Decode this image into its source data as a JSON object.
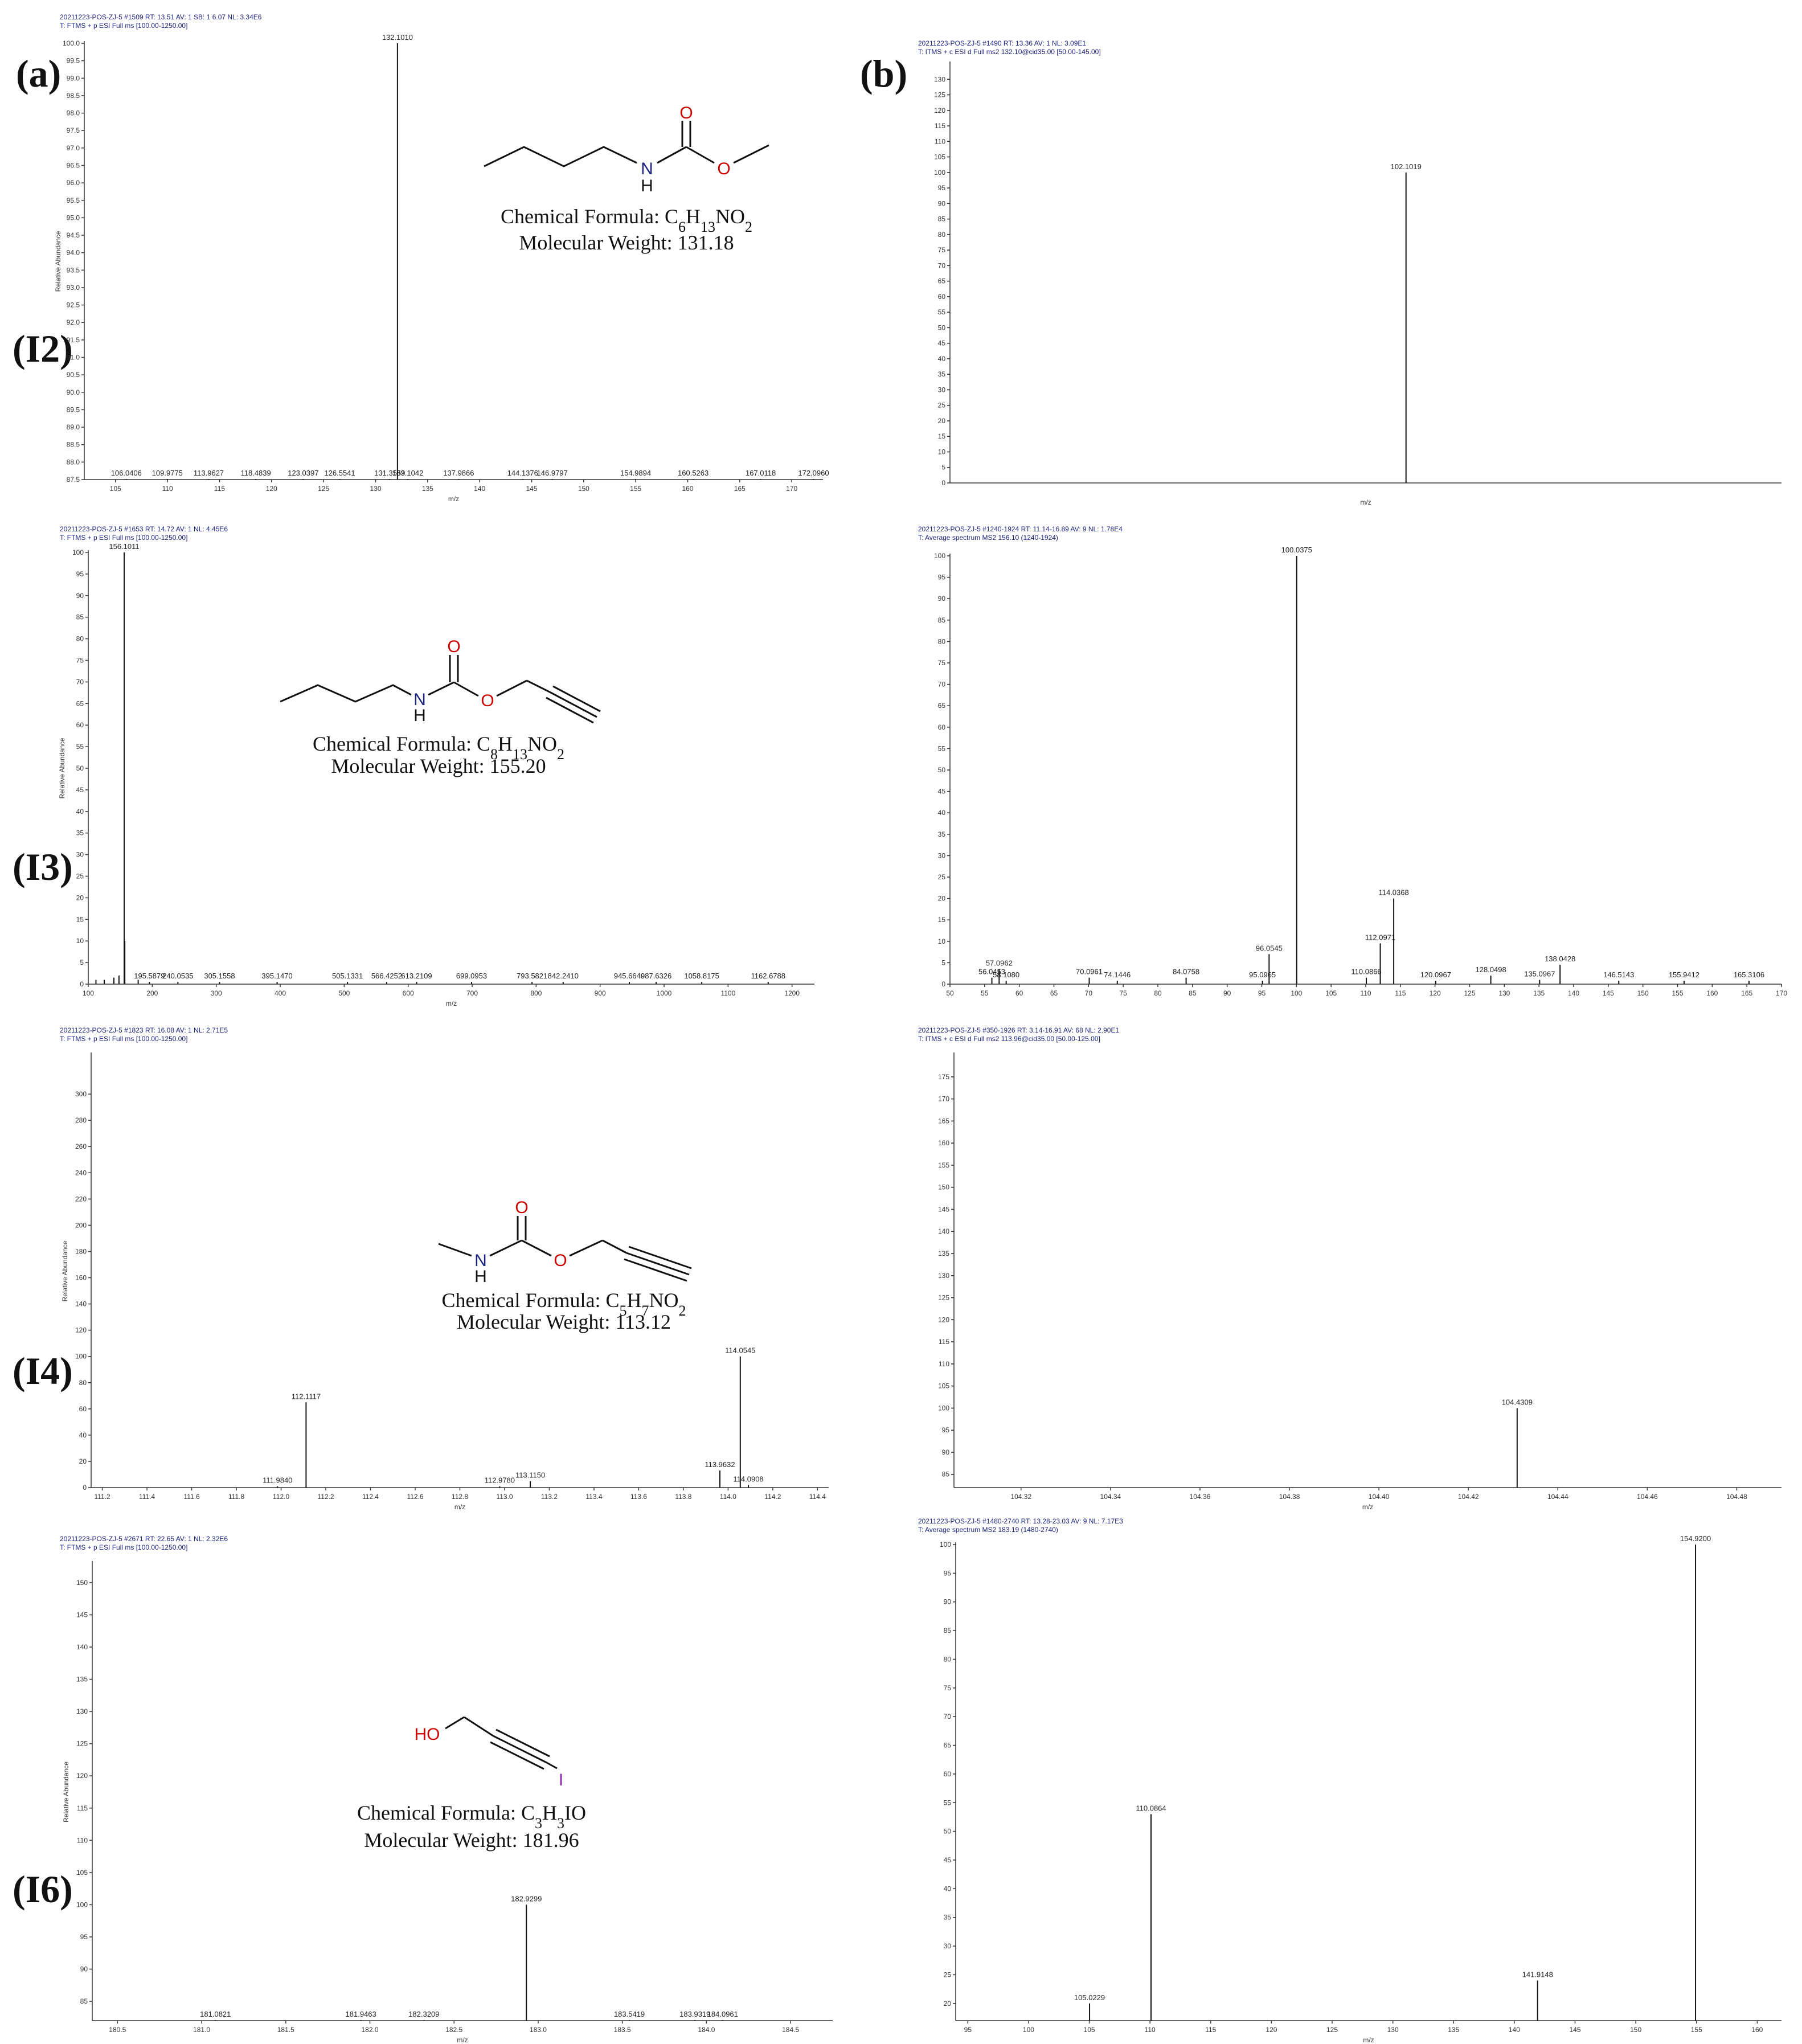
{
  "panel_labels": {
    "a": "(a)",
    "b": "(b)",
    "I2": "(I2)",
    "I3": "(I3)",
    "I4": "(I4)",
    "I6": "(I6)"
  },
  "colors": {
    "header": "#1a237e",
    "oxygen": "#cc0000",
    "nitrogen": "#1a237e",
    "iodine": "#8e24aa"
  },
  "molecules": {
    "I2": {
      "formula_prefix": "Chemical Formula: ",
      "formula": [
        [
          "C",
          ""
        ],
        [
          "6",
          "sub"
        ],
        [
          "H",
          ""
        ],
        [
          "13",
          "sub"
        ],
        [
          "NO",
          ""
        ],
        [
          "2",
          "sub"
        ]
      ],
      "weight": "Molecular Weight: 131.18",
      "atoms": {
        "O1": "O",
        "O2": "O",
        "N": "N",
        "H": "H"
      }
    },
    "I3": {
      "formula_prefix": "Chemical Formula: ",
      "formula": [
        [
          "C",
          ""
        ],
        [
          "8",
          "sub"
        ],
        [
          "H",
          ""
        ],
        [
          "13",
          "sub"
        ],
        [
          "NO",
          ""
        ],
        [
          "2",
          "sub"
        ]
      ],
      "weight": "Molecular Weight: 155.20",
      "atoms": {
        "O1": "O",
        "O2": "O",
        "N": "N",
        "H": "H"
      }
    },
    "I4": {
      "formula_prefix": "Chemical Formula: ",
      "formula": [
        [
          "C",
          ""
        ],
        [
          "5",
          "sub"
        ],
        [
          "H",
          ""
        ],
        [
          "7",
          "sub"
        ],
        [
          "NO",
          ""
        ],
        [
          "2",
          "sub"
        ]
      ],
      "weight": "Molecular Weight: 113.12",
      "atoms": {
        "O1": "O",
        "O2": "O",
        "N": "N",
        "H": "H"
      }
    },
    "I6": {
      "formula_prefix": "Chemical Formula: ",
      "formula": [
        [
          "C",
          ""
        ],
        [
          "3",
          "sub"
        ],
        [
          "H",
          ""
        ],
        [
          "3",
          "sub"
        ],
        [
          "IO",
          ""
        ]
      ],
      "weight": "Molecular Weight: 181.96",
      "atoms": {
        "HO": "HO",
        "I": "I"
      }
    }
  },
  "chart_data": [
    {
      "id": "I2_ms",
      "type": "bar",
      "header": [
        "20211223-POS-ZJ-5 #1509   RT: 13.51   AV: 1   SB: 1 6.07   NL: 3.34E6",
        "T: FTMS + p ESI Full ms [100.00-1250.00]"
      ],
      "xlabel": "m/z",
      "ylabel": "Relative Abundance",
      "xlim": [
        102,
        173
      ],
      "ylim": [
        87.5,
        100
      ],
      "xticks": [
        105,
        110,
        115,
        120,
        125,
        130,
        135,
        140,
        145,
        150,
        155,
        160,
        165,
        170
      ],
      "yticks": [
        87.5,
        88,
        88.5,
        89,
        89.5,
        90,
        90.5,
        91,
        91.5,
        92,
        92.5,
        93,
        93.5,
        94,
        94.5,
        95,
        95.5,
        96,
        96.5,
        97,
        97.5,
        98,
        98.5,
        99,
        99.5,
        100
      ],
      "ytick_decimals": 1,
      "peaks": [
        {
          "x": 106.0406,
          "y": 87.5,
          "label": "106.0406"
        },
        {
          "x": 109.9775,
          "y": 87.5,
          "label": "109.9775"
        },
        {
          "x": 113.9627,
          "y": 87.5,
          "label": "113.9627"
        },
        {
          "x": 118.4839,
          "y": 87.5,
          "label": "118.4839"
        },
        {
          "x": 123.0397,
          "y": 87.5,
          "label": "123.0397"
        },
        {
          "x": 126.5541,
          "y": 87.5,
          "label": "126.5541"
        },
        {
          "x": 131.3559,
          "y": 87.5,
          "label": "131.3559"
        },
        {
          "x": 132.101,
          "y": 100,
          "label": "132.1010"
        },
        {
          "x": 133.1042,
          "y": 87.5,
          "label": "133.1042"
        },
        {
          "x": 137.9866,
          "y": 87.5,
          "label": "137.9866"
        },
        {
          "x": 144.1376,
          "y": 87.5,
          "label": "144.1376"
        },
        {
          "x": 146.9797,
          "y": 87.5,
          "label": "146.9797"
        },
        {
          "x": 154.9894,
          "y": 87.5,
          "label": "154.9894"
        },
        {
          "x": 160.5263,
          "y": 87.5,
          "label": "160.5263"
        },
        {
          "x": 167.0118,
          "y": 87.5,
          "label": "167.0118"
        },
        {
          "x": 172.096,
          "y": 87.5,
          "label": "172.0960"
        }
      ]
    },
    {
      "id": "I2_ms2",
      "type": "bar",
      "header": [
        "20211223-POS-ZJ-5 #1490   RT: 13.36   AV: 1   NL: 3.09E1",
        "T: ITMS + c ESI d Full ms2 132.10@cid35.00 [50.00-145.00]"
      ],
      "xlabel": "m/z",
      "ylabel": "",
      "xlim": [
        50,
        145
      ],
      "ylim": [
        0,
        135
      ],
      "xticks": [],
      "yticks": [
        0,
        5,
        10,
        15,
        20,
        25,
        30,
        35,
        40,
        45,
        50,
        55,
        60,
        65,
        70,
        75,
        80,
        85,
        90,
        95,
        100,
        105,
        110,
        115,
        120,
        125,
        130
      ],
      "ytick_decimals": 0,
      "peaks": [
        {
          "x": 102.1019,
          "y": 100,
          "label": "102.1019"
        }
      ]
    },
    {
      "id": "I3_ms",
      "type": "bar",
      "header": [
        "20211223-POS-ZJ-5 #1653   RT: 14.72   AV: 1   NL: 4.45E6",
        "T: FTMS + p ESI Full ms [100.00-1250.00]"
      ],
      "xlabel": "m/z",
      "ylabel": "Relative Abundance",
      "xlim": [
        100,
        1235
      ],
      "ylim": [
        0,
        100
      ],
      "xticks": [
        100,
        200,
        300,
        400,
        500,
        600,
        700,
        800,
        900,
        1000,
        1100,
        1200
      ],
      "yticks": [
        0,
        5,
        10,
        15,
        20,
        25,
        30,
        35,
        40,
        45,
        50,
        55,
        60,
        65,
        70,
        75,
        80,
        85,
        90,
        95,
        100
      ],
      "ytick_decimals": 0,
      "peaks": [
        {
          "x": 156.1011,
          "y": 100,
          "label": "156.1011"
        },
        {
          "x": 157.1,
          "y": 10,
          "label": ""
        },
        {
          "x": 112,
          "y": 1,
          "label": ""
        },
        {
          "x": 125,
          "y": 1,
          "label": ""
        },
        {
          "x": 140,
          "y": 1.5,
          "label": ""
        },
        {
          "x": 148,
          "y": 2,
          "label": ""
        },
        {
          "x": 178,
          "y": 1,
          "label": ""
        },
        {
          "x": 195.5879,
          "y": 0.5,
          "label": "195.5879"
        },
        {
          "x": 240.0535,
          "y": 0.5,
          "label": "240.0535"
        },
        {
          "x": 305.1558,
          "y": 0.5,
          "label": "305.1558"
        },
        {
          "x": 395.147,
          "y": 0.5,
          "label": "395.1470"
        },
        {
          "x": 505.1331,
          "y": 0.5,
          "label": "505.1331"
        },
        {
          "x": 566.4252,
          "y": 0.5,
          "label": "566.4252"
        },
        {
          "x": 613.2109,
          "y": 0.5,
          "label": "613.2109"
        },
        {
          "x": 699.0953,
          "y": 0.5,
          "label": "699.0953"
        },
        {
          "x": 793.5821,
          "y": 0.5,
          "label": "793.5821"
        },
        {
          "x": 842.241,
          "y": 0.5,
          "label": "842.2410"
        },
        {
          "x": 945.664,
          "y": 0.5,
          "label": "945.6640"
        },
        {
          "x": 987.6326,
          "y": 0.5,
          "label": "987.6326"
        },
        {
          "x": 1058.8175,
          "y": 0.5,
          "label": "1058.8175"
        },
        {
          "x": 1162.6788,
          "y": 0.5,
          "label": "1162.6788"
        }
      ]
    },
    {
      "id": "I3_ms2",
      "type": "bar",
      "header": [
        "20211223-POS-ZJ-5 #1240-1924   RT: 11.14-16.89   AV: 9   NL: 1.78E4",
        "T: Average spectrum MS2 156.10 (1240-1924)"
      ],
      "xlabel": "",
      "ylabel": "",
      "xlim": [
        50,
        170
      ],
      "ylim": [
        0,
        100
      ],
      "xticks": [
        50,
        55,
        60,
        65,
        70,
        75,
        80,
        85,
        90,
        95,
        100,
        105,
        110,
        115,
        120,
        125,
        130,
        135,
        140,
        145,
        150,
        155,
        160,
        165,
        170
      ],
      "yticks": [
        0,
        5,
        10,
        15,
        20,
        25,
        30,
        35,
        40,
        45,
        50,
        55,
        60,
        65,
        70,
        75,
        80,
        85,
        90,
        95,
        100
      ],
      "ytick_decimals": 0,
      "peaks": [
        {
          "x": 56.0453,
          "y": 1.5,
          "label": "56.0453"
        },
        {
          "x": 57.0962,
          "y": 3.5,
          "label": "57.0962"
        },
        {
          "x": 58.108,
          "y": 0.8,
          "label": "58.1080"
        },
        {
          "x": 70.0961,
          "y": 1.5,
          "label": "70.0961"
        },
        {
          "x": 74.1446,
          "y": 0.8,
          "label": "74.1446"
        },
        {
          "x": 84.0758,
          "y": 1.5,
          "label": "84.0758"
        },
        {
          "x": 95.0965,
          "y": 0.8,
          "label": "95.0965"
        },
        {
          "x": 96.0545,
          "y": 7,
          "label": "96.0545"
        },
        {
          "x": 100.0375,
          "y": 100,
          "label": "100.0375"
        },
        {
          "x": 110.0866,
          "y": 1.5,
          "label": "110.0866"
        },
        {
          "x": 112.0971,
          "y": 9.5,
          "label": "112.0971"
        },
        {
          "x": 114.0368,
          "y": 20,
          "label": "114.0368"
        },
        {
          "x": 120.0967,
          "y": 0.8,
          "label": "120.0967"
        },
        {
          "x": 128.0498,
          "y": 2,
          "label": "128.0498"
        },
        {
          "x": 135.0967,
          "y": 1,
          "label": "135.0967"
        },
        {
          "x": 138.0428,
          "y": 4.5,
          "label": "138.0428"
        },
        {
          "x": 146.5143,
          "y": 0.8,
          "label": "146.5143"
        },
        {
          "x": 155.9412,
          "y": 0.8,
          "label": "155.9412"
        },
        {
          "x": 165.3106,
          "y": 0.8,
          "label": "165.3106"
        }
      ]
    },
    {
      "id": "I4_ms",
      "type": "bar",
      "header": [
        "20211223-POS-ZJ-5 #1823   RT: 16.08   AV: 1   NL: 2.71E5",
        "T: FTMS + p ESI Full ms [100.00-1250.00]"
      ],
      "xlabel": "m/z",
      "ylabel": "Relative Abundance",
      "xlim": [
        111.15,
        114.45
      ],
      "ylim": [
        0,
        330
      ],
      "xticks": [
        111.2,
        111.4,
        111.6,
        111.8,
        112.0,
        112.2,
        112.4,
        112.6,
        112.8,
        113.0,
        113.2,
        113.4,
        113.6,
        113.8,
        114.0,
        114.2,
        114.4
      ],
      "yticks": [
        0,
        20,
        40,
        60,
        80,
        100,
        120,
        140,
        160,
        180,
        200,
        220,
        240,
        260,
        280,
        300
      ],
      "ytick_decimals": 0,
      "xtick_decimals": 1,
      "peaks": [
        {
          "x": 111.984,
          "y": 1,
          "label": "111.9840"
        },
        {
          "x": 112.1117,
          "y": 65,
          "label": "112.1117"
        },
        {
          "x": 112.978,
          "y": 1,
          "label": "112.9780"
        },
        {
          "x": 113.115,
          "y": 5,
          "label": "113.1150"
        },
        {
          "x": 113.9632,
          "y": 13,
          "label": "113.9632"
        },
        {
          "x": 114.0545,
          "y": 100,
          "label": "114.0545"
        },
        {
          "x": 114.0908,
          "y": 2,
          "label": "114.0908"
        }
      ]
    },
    {
      "id": "I4_ms2",
      "type": "bar",
      "header": [
        "20211223-POS-ZJ-5 #350-1926   RT: 3.14-16.91   AV: 68   NL: 2.90E1",
        "T: ITMS + c ESI d Full ms2 113.96@cid35.00 [50.00-125.00]"
      ],
      "xlabel": "m/z",
      "ylabel": "",
      "xlim": [
        104.305,
        104.49
      ],
      "ylim": [
        82,
        180
      ],
      "xticks": [
        104.32,
        104.34,
        104.36,
        104.38,
        104.4,
        104.42,
        104.44,
        104.46,
        104.48
      ],
      "yticks": [
        85,
        90,
        95,
        100,
        105,
        110,
        115,
        120,
        125,
        130,
        135,
        140,
        145,
        150,
        155,
        160,
        165,
        170,
        175
      ],
      "ytick_decimals": 0,
      "xtick_decimals": 2,
      "peaks": [
        {
          "x": 104.4309,
          "y": 100,
          "label": "104.4309"
        }
      ]
    },
    {
      "id": "I6_ms",
      "type": "bar",
      "header": [
        "20211223-POS-ZJ-5 #2671   RT: 22.65   AV: 1   NL: 2.32E6",
        "T: FTMS + p ESI Full ms [100.00-1250.00]"
      ],
      "xlabel": "m/z",
      "ylabel": "Relative Abundance",
      "xlim": [
        180.35,
        184.75
      ],
      "ylim": [
        82,
        153
      ],
      "xticks": [
        180.5,
        181.0,
        181.5,
        182.0,
        182.5,
        183.0,
        183.5,
        184.0,
        184.5
      ],
      "yticks": [
        85,
        90,
        95,
        100,
        105,
        110,
        115,
        120,
        125,
        130,
        135,
        140,
        145,
        150
      ],
      "ytick_decimals": 0,
      "xtick_decimals": 1,
      "peaks": [
        {
          "x": 181.0821,
          "y": 82,
          "label": "181.0821"
        },
        {
          "x": 181.9463,
          "y": 82,
          "label": "181.9463"
        },
        {
          "x": 182.3209,
          "y": 82,
          "label": "182.3209"
        },
        {
          "x": 182.9299,
          "y": 100,
          "label": "182.9299"
        },
        {
          "x": 183.5419,
          "y": 82,
          "label": "183.5419"
        },
        {
          "x": 183.9319,
          "y": 82,
          "label": "183.9319"
        },
        {
          "x": 184.0961,
          "y": 82,
          "label": "184.0961"
        }
      ]
    },
    {
      "id": "I6_ms2",
      "type": "bar",
      "header": [
        "20211223-POS-ZJ-5 #1480-2740   RT: 13.28-23.03   AV: 9   NL: 7.17E3",
        "T: Average spectrum MS2 183.19 (1480-2740)"
      ],
      "xlabel": "m/z",
      "ylabel": "",
      "xlim": [
        94,
        162
      ],
      "ylim": [
        17,
        100
      ],
      "xticks": [
        95,
        100,
        105,
        110,
        115,
        120,
        125,
        130,
        135,
        140,
        145,
        150,
        155,
        160
      ],
      "yticks": [
        20,
        25,
        30,
        35,
        40,
        45,
        50,
        55,
        60,
        65,
        70,
        75,
        80,
        85,
        90,
        95,
        100
      ],
      "ytick_decimals": 0,
      "peaks": [
        {
          "x": 105.0229,
          "y": 20,
          "label": "105.0229"
        },
        {
          "x": 110.0864,
          "y": 53,
          "label": "110.0864"
        },
        {
          "x": 141.9148,
          "y": 24,
          "label": "141.9148"
        },
        {
          "x": 154.92,
          "y": 100,
          "label": "154.9200"
        }
      ]
    }
  ]
}
